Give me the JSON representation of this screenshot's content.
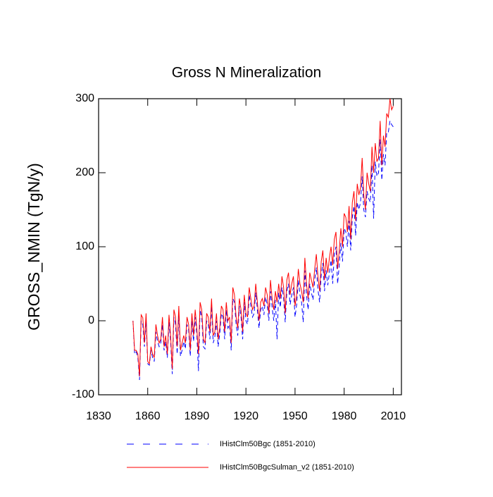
{
  "chart_data": {
    "type": "line",
    "title": "Gross N Mineralization",
    "ylabel": "GROSS_NMIN  (TgN/y)",
    "x": [
      1851,
      1852,
      1853,
      1854,
      1855,
      1856,
      1857,
      1858,
      1859,
      1860,
      1861,
      1862,
      1863,
      1864,
      1865,
      1866,
      1867,
      1868,
      1869,
      1870,
      1871,
      1872,
      1873,
      1874,
      1875,
      1876,
      1877,
      1878,
      1879,
      1880,
      1881,
      1882,
      1883,
      1884,
      1885,
      1886,
      1887,
      1888,
      1889,
      1890,
      1891,
      1892,
      1893,
      1894,
      1895,
      1896,
      1897,
      1898,
      1899,
      1900,
      1901,
      1902,
      1903,
      1904,
      1905,
      1906,
      1907,
      1908,
      1909,
      1910,
      1911,
      1912,
      1913,
      1914,
      1915,
      1916,
      1917,
      1918,
      1919,
      1920,
      1921,
      1922,
      1923,
      1924,
      1925,
      1926,
      1927,
      1928,
      1929,
      1930,
      1931,
      1932,
      1933,
      1934,
      1935,
      1936,
      1937,
      1938,
      1939,
      1940,
      1941,
      1942,
      1943,
      1944,
      1945,
      1946,
      1947,
      1948,
      1949,
      1950,
      1951,
      1952,
      1953,
      1954,
      1955,
      1956,
      1957,
      1958,
      1959,
      1960,
      1961,
      1962,
      1963,
      1964,
      1965,
      1966,
      1967,
      1968,
      1969,
      1970,
      1971,
      1972,
      1973,
      1974,
      1975,
      1976,
      1977,
      1978,
      1979,
      1980,
      1981,
      1982,
      1983,
      1984,
      1985,
      1986,
      1987,
      1988,
      1989,
      1990,
      1991,
      1992,
      1993,
      1994,
      1995,
      1996,
      1997,
      1998,
      1999,
      2000,
      2001,
      2002,
      2003,
      2004,
      2005,
      2006,
      2007,
      2008,
      2009,
      2010
    ],
    "series": [
      {
        "name": "IHistClm50Bgc (1851-2010)",
        "color": "#0000ff",
        "linestyle": "dashed",
        "values": [
          0,
          -45,
          -42,
          -50,
          -80,
          0,
          -5,
          -35,
          0,
          -58,
          -60,
          -40,
          -50,
          -55,
          -15,
          -28,
          -35,
          -30,
          -5,
          -40,
          -28,
          -50,
          -2,
          -28,
          -72,
          5,
          -5,
          -45,
          10,
          -48,
          -40,
          -28,
          -38,
          -5,
          -12,
          -48,
          0,
          -28,
          5,
          -18,
          -68,
          15,
          5,
          -35,
          -38,
          0,
          -5,
          -25,
          20,
          -30,
          -22,
          0,
          -35,
          -18,
          10,
          5,
          -25,
          15,
          -10,
          -5,
          -40,
          30,
          25,
          -5,
          -20,
          20,
          5,
          -25,
          25,
          0,
          -5,
          35,
          20,
          5,
          10,
          38,
          15,
          -10,
          15,
          20,
          8,
          32,
          22,
          0,
          40,
          18,
          0,
          28,
          -25,
          38,
          18,
          45,
          32,
          -2,
          40,
          50,
          22,
          35,
          45,
          5,
          22,
          55,
          35,
          25,
          -2,
          68,
          35,
          15,
          50,
          38,
          28,
          55,
          72,
          42,
          25,
          62,
          78,
          40,
          68,
          48,
          65,
          82,
          50,
          90,
          100,
          50,
          75,
          105,
          80,
          125,
          120,
          100,
          135,
          95,
          140,
          155,
          115,
          160,
          150,
          160,
          195,
          150,
          140,
          175,
          165,
          160,
          210,
          138,
          215,
          195,
          200,
          245,
          190,
          225,
          210,
          255,
          255,
          270,
          265,
          262
        ]
      },
      {
        "name": "IHistClm50BgcSulman_v2 (1851-2010)",
        "color": "#ff0000",
        "linestyle": "solid",
        "values": [
          0,
          -40,
          -40,
          -45,
          -75,
          8,
          4,
          -30,
          10,
          -55,
          -58,
          -35,
          -45,
          -50,
          -5,
          -20,
          -30,
          -25,
          5,
          -35,
          -20,
          -45,
          8,
          -20,
          -65,
          15,
          5,
          -35,
          20,
          -40,
          -30,
          -20,
          -30,
          5,
          -5,
          -40,
          10,
          -20,
          15,
          -10,
          -45,
          25,
          15,
          -25,
          -30,
          10,
          5,
          -15,
          30,
          -20,
          -15,
          10,
          -25,
          -10,
          20,
          15,
          -15,
          25,
          0,
          5,
          -30,
          45,
          35,
          5,
          -10,
          30,
          15,
          -15,
          35,
          10,
          5,
          45,
          30,
          15,
          20,
          50,
          25,
          0,
          25,
          30,
          20,
          45,
          35,
          10,
          55,
          30,
          15,
          40,
          25,
          50,
          30,
          60,
          45,
          10,
          55,
          65,
          35,
          50,
          60,
          20,
          35,
          70,
          50,
          40,
          25,
          85,
          50,
          30,
          65,
          55,
          45,
          70,
          90,
          60,
          40,
          80,
          95,
          55,
          85,
          65,
          85,
          100,
          75,
          110,
          120,
          70,
          95,
          125,
          100,
          145,
          140,
          120,
          155,
          110,
          160,
          175,
          135,
          185,
          170,
          180,
          220,
          170,
          150,
          200,
          185,
          175,
          235,
          200,
          240,
          215,
          220,
          270,
          210,
          250,
          235,
          280,
          275,
          300,
          285,
          290
        ]
      }
    ],
    "xlim": [
      1830,
      2015
    ],
    "xticks": [
      1830,
      1860,
      1890,
      1920,
      1950,
      1980,
      2010
    ],
    "ylim": [
      -100,
      300
    ],
    "yticks": [
      -100,
      0,
      100,
      200,
      300
    ]
  }
}
